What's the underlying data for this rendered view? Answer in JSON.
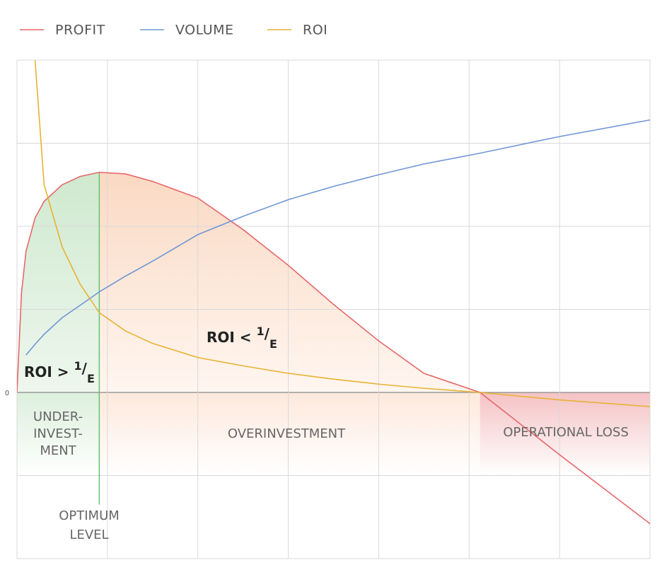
{
  "chart_data": {
    "type": "line",
    "legend": "top-left",
    "grid": true,
    "xlim": [
      0,
      7
    ],
    "ylim": [
      -2,
      4
    ],
    "xticks": [
      {
        "value": 0,
        "label": null
      },
      {
        "value": 1,
        "label": null
      },
      {
        "value": 2,
        "label": null
      },
      {
        "value": 3,
        "label": null
      },
      {
        "value": 4,
        "label": null
      },
      {
        "value": 5,
        "label": null
      },
      {
        "value": 6,
        "label": null
      },
      {
        "value": 7,
        "label": null
      }
    ],
    "yticks": [
      {
        "value": -2,
        "label": null
      },
      {
        "value": -1,
        "label": null
      },
      0,
      {
        "value": 1,
        "label": null
      },
      {
        "value": 2,
        "label": null
      },
      {
        "value": 3,
        "label": null
      },
      {
        "value": 4,
        "label": null
      }
    ],
    "x": [
      0,
      0.05,
      0.1,
      0.2,
      0.3,
      0.5,
      0.7,
      0.91,
      1.2,
      1.5,
      2,
      2.5,
      3,
      3.5,
      4,
      4.5,
      5.12,
      6,
      7
    ],
    "series": [
      {
        "name": "PROFIT",
        "color": "#e8676a",
        "values": [
          0,
          1.2,
          1.7,
          2.1,
          2.3,
          2.5,
          2.6,
          2.65,
          2.63,
          2.54,
          2.34,
          1.96,
          1.53,
          1.06,
          0.62,
          0.23,
          0,
          -0.75,
          -1.58
        ]
      },
      {
        "name": "VOLUME",
        "color": "#7096d6",
        "values": [
          null,
          null,
          0.45,
          0.58,
          0.7,
          0.9,
          1.05,
          1.21,
          1.4,
          1.58,
          1.9,
          2.12,
          2.32,
          2.48,
          2.62,
          2.75,
          2.88,
          3.08,
          3.28
        ]
      },
      {
        "name": "ROI",
        "color": "#e8b233",
        "values": [
          null,
          null,
          null,
          4,
          2.5,
          1.75,
          1.3,
          0.96,
          0.74,
          0.59,
          0.42,
          0.32,
          0.23,
          0.16,
          0.1,
          0.05,
          0,
          -0.09,
          -0.17
        ]
      }
    ],
    "optimum": {
      "x": 0.91,
      "ylim": [
        -1.35,
        2.65
      ],
      "color": "#66c36b",
      "label": [
        "OPTIMUM",
        "LEVEL"
      ]
    },
    "annotations": {
      "roi_high": [
        "ROI > ",
        "1",
        "/",
        "E"
      ],
      "roi_low": [
        "ROI < ",
        "1",
        "/",
        "E"
      ],
      "underinvestment": [
        "UNDER-",
        "INVEST-",
        "MENT"
      ],
      "overinvestment": "OVERINVESTMENT",
      "operational_loss": "OPERATIONAL LOSS"
    }
  }
}
